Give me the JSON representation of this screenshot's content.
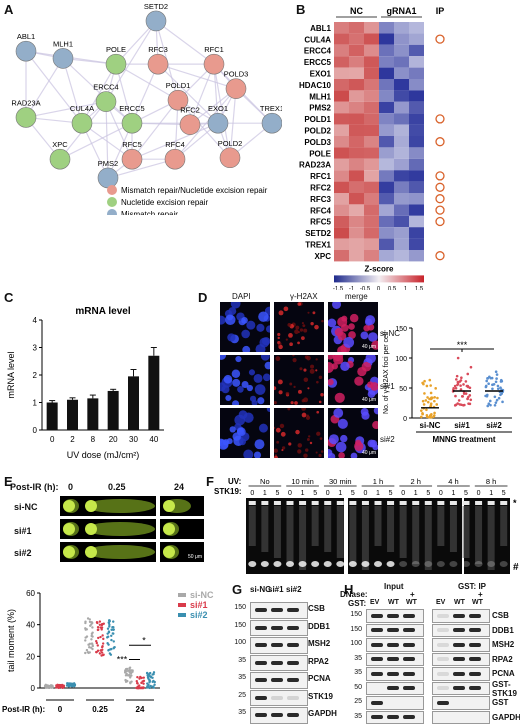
{
  "panels": {
    "A": {
      "label": "A",
      "nodes": [
        {
          "name": "SETD2",
          "group": "mismatch_repair"
        },
        {
          "name": "ABL1",
          "group": "mismatch_repair"
        },
        {
          "name": "MLH1",
          "group": "mismatch_repair"
        },
        {
          "name": "POLE",
          "group": "nucleotide_excision_repair"
        },
        {
          "name": "RFC3",
          "group": "mmr_ner"
        },
        {
          "name": "RFC1",
          "group": "mmr_ner"
        },
        {
          "name": "POLD3",
          "group": "mmr_ner"
        },
        {
          "name": "ERCC4",
          "group": "nucleotide_excision_repair"
        },
        {
          "name": "POLD1",
          "group": "mmr_ner"
        },
        {
          "name": "EXO1",
          "group": "mismatch_repair"
        },
        {
          "name": "TREX1",
          "group": "mismatch_repair"
        },
        {
          "name": "RAD23A",
          "group": "nucleotide_excision_repair"
        },
        {
          "name": "CUL4A",
          "group": "nucleotide_excision_repair"
        },
        {
          "name": "ERCC5",
          "group": "nucleotide_excision_repair"
        },
        {
          "name": "RFC2",
          "group": "mmr_ner"
        },
        {
          "name": "XPC",
          "group": "nucleotide_excision_repair"
        },
        {
          "name": "POLD2",
          "group": "mmr_ner"
        },
        {
          "name": "RFC4",
          "group": "mmr_ner"
        },
        {
          "name": "RFC5",
          "group": "mmr_ner"
        },
        {
          "name": "PMS2",
          "group": "mismatch_repair"
        }
      ],
      "legend": [
        {
          "text": "Mismatch repair/Nucletide excision repair",
          "color": "#e89a8e"
        },
        {
          "text": "Nucletide excision repair",
          "color": "#9fd081"
        },
        {
          "text": "Mismatch repair",
          "color": "#93aec9"
        }
      ]
    },
    "B": {
      "label": "B",
      "column_groups": [
        "NC",
        "gRNA1",
        "IP"
      ],
      "genes": [
        "ABL1",
        "CUL4A",
        "ERCC4",
        "ERCC5",
        "EXO1",
        "HDAC10",
        "MLH1",
        "PMS2",
        "POLD1",
        "POLD2",
        "POLD3",
        "POLE",
        "RAD23A",
        "RFC1",
        "RFC2",
        "RFC3",
        "RFC4",
        "RFC5",
        "SETD2",
        "TREX1",
        "XPC"
      ],
      "ip_marked": [
        "CUL4A",
        "POLD1",
        "POLD3",
        "RFC1",
        "RFC2",
        "RFC3",
        "RFC4",
        "RFC5",
        "XPC"
      ],
      "colorbar_title": "Z-score",
      "colorbar_ticks": [
        "-1.5",
        "-1",
        "-0.5",
        "0",
        "0.5",
        "1",
        "1.5"
      ]
    },
    "C": {
      "label": "C",
      "chart_data": {
        "type": "bar",
        "title": "mRNA level",
        "xlabel": "UV dose (mJ/cm²)",
        "ylabel": "mRNA level",
        "categories": [
          "0",
          "2",
          "8",
          "20",
          "30",
          "40"
        ],
        "values": [
          1.0,
          1.1,
          1.15,
          1.42,
          1.95,
          2.7
        ],
        "errors": [
          0.07,
          0.07,
          0.12,
          0.06,
          0.25,
          0.3
        ],
        "ylim": [
          0,
          4
        ],
        "yticks": [
          "0",
          "1",
          "2",
          "3",
          "4"
        ]
      }
    },
    "D": {
      "label": "D",
      "columns": [
        "DAPI",
        "γ-H2AX",
        "merge"
      ],
      "rows": [
        "si-NC",
        "si#1",
        "si#2"
      ],
      "scale_bar": "40 μm",
      "chart_data": {
        "type": "scatter",
        "ylabel": "No. of γ-H2AX foci per cell",
        "xlabel": "MNNG treatment",
        "categories": [
          "si-NC",
          "si#1",
          "si#2"
        ],
        "means": [
          17,
          45,
          45
        ],
        "yticks": [
          "0",
          "50",
          "100",
          "150"
        ],
        "ylim": [
          0,
          150
        ],
        "significance": "***",
        "colors": [
          "#e8a22a",
          "#d94a5a",
          "#5a8fd0"
        ]
      }
    },
    "E": {
      "label": "E",
      "postir_label": "Post-IR (h):",
      "timepoints": [
        "0",
        "0.25",
        "24"
      ],
      "rows": [
        "si-NC",
        "si#1",
        "si#2"
      ],
      "scale_bar": "50 μm",
      "chart_data": {
        "type": "scatter",
        "ylabel": "tail moment (%)",
        "xlabel": "Post-IR (h):",
        "groups": [
          "0",
          "0.25",
          "24"
        ],
        "series": [
          {
            "name": "si-NC",
            "means": [
              1,
              33,
              8
            ],
            "color": "#a9a9a9"
          },
          {
            "name": "si#1",
            "means": [
              1,
              31,
              2
            ],
            "color": "#d93b4a"
          },
          {
            "name": "si#2",
            "means": [
              2,
              32,
              5
            ],
            "color": "#3a8fb0"
          }
        ],
        "yticks": [
          "0",
          "20",
          "40",
          "60"
        ],
        "ylim": [
          0,
          60
        ],
        "significance": [
          "***",
          "*"
        ]
      }
    },
    "F": {
      "label": "F",
      "uv_label": "UV:",
      "stk_label": "STK19:",
      "timepoints": [
        "No",
        "10 min",
        "30 min",
        "1 h",
        "2 h",
        "4 h",
        "8 h"
      ],
      "doses": [
        "0",
        "1",
        "5"
      ],
      "mark_top": "*",
      "mark_bottom": "#"
    },
    "G": {
      "label": "G",
      "lanes": [
        "si-NC",
        "si#1",
        "si#2"
      ],
      "blots": [
        {
          "mw": "150",
          "name": "CSB"
        },
        {
          "mw": "150",
          "name": "DDB1"
        },
        {
          "mw": "100",
          "name": "MSH2"
        },
        {
          "mw": "35",
          "name": "RPA2"
        },
        {
          "mw": "35",
          "name": "PCNA"
        },
        {
          "mw": "25",
          "name": "STK19"
        },
        {
          "mw": "35",
          "name": "GAPDH"
        }
      ]
    },
    "H": {
      "label": "H",
      "input_title": "Input",
      "ip_title": "GST: IP",
      "dnase_label": "DNase:",
      "gst_label": "GST:",
      "dnase_marks": [
        "+",
        "+"
      ],
      "lanes": [
        "EV",
        "WT",
        "WT"
      ],
      "blots": [
        {
          "mw": "150",
          "name": "CSB"
        },
        {
          "mw": "150",
          "name": "DDB1"
        },
        {
          "mw": "100",
          "name": "MSH2"
        },
        {
          "mw": "35",
          "name": "RPA2"
        },
        {
          "mw": "35",
          "name": "PCNA"
        },
        {
          "mw": "50",
          "name": "GST-STK19"
        },
        {
          "mw": "25",
          "name": "GST"
        },
        {
          "mw": "35",
          "name": "GAPDH"
        }
      ]
    }
  }
}
